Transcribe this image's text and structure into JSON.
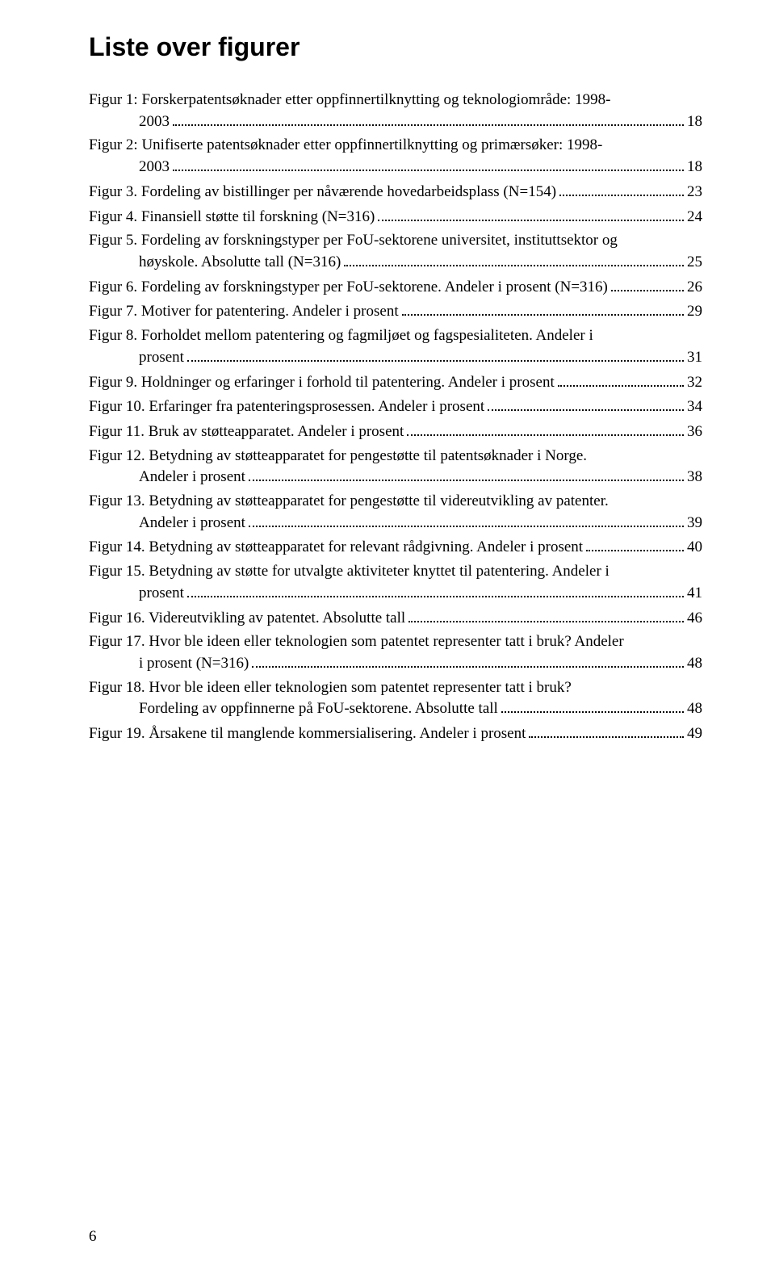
{
  "title": "Liste over figurer",
  "pageNumber": "6",
  "entries": [
    {
      "lines": [
        "Figur 1: Forskerpatentsøknader etter oppfinnertilknytting og teknologiområde: 1998-",
        "2003"
      ],
      "page": "18"
    },
    {
      "lines": [
        "Figur 2: Unifiserte patentsøknader etter oppfinnertilknytting og primærsøker: 1998-",
        "2003"
      ],
      "page": "18"
    },
    {
      "lines": [
        "Figur 3. Fordeling av bistillinger per nåværende hovedarbeidsplass (N=154)"
      ],
      "page": "23"
    },
    {
      "lines": [
        "Figur 4. Finansiell støtte til forskning (N=316)"
      ],
      "page": "24"
    },
    {
      "lines": [
        "Figur 5. Fordeling av forskningstyper per FoU-sektorene universitet, instituttsektor og",
        "høyskole. Absolutte tall (N=316)"
      ],
      "page": "25"
    },
    {
      "lines": [
        "Figur 6. Fordeling av forskningstyper per FoU-sektorene. Andeler i prosent (N=316)"
      ],
      "page": "26"
    },
    {
      "lines": [
        "Figur 7. Motiver for patentering. Andeler i prosent"
      ],
      "page": "29"
    },
    {
      "lines": [
        "Figur 8. Forholdet mellom patentering og fagmiljøet og fagspesialiteten. Andeler i",
        "prosent"
      ],
      "page": "31"
    },
    {
      "lines": [
        "Figur 9. Holdninger og erfaringer i forhold til patentering. Andeler i prosent"
      ],
      "page": "32"
    },
    {
      "lines": [
        "Figur 10. Erfaringer fra patenteringsprosessen. Andeler i prosent"
      ],
      "page": "34"
    },
    {
      "lines": [
        "Figur 11. Bruk av støtteapparatet. Andeler i prosent"
      ],
      "page": "36"
    },
    {
      "lines": [
        "Figur 12. Betydning av støtteapparatet for pengestøtte til patentsøknader i Norge.",
        "Andeler i prosent"
      ],
      "page": "38"
    },
    {
      "lines": [
        "Figur 13. Betydning av støtteapparatet for pengestøtte til videreutvikling av patenter.",
        "Andeler i prosent"
      ],
      "page": "39"
    },
    {
      "lines": [
        "Figur 14. Betydning av støtteapparatet for relevant rådgivning. Andeler i prosent"
      ],
      "page": "40"
    },
    {
      "lines": [
        "Figur 15. Betydning av støtte for utvalgte aktiviteter knyttet til patentering. Andeler i",
        "prosent"
      ],
      "page": "41"
    },
    {
      "lines": [
        "Figur 16. Videreutvikling av patentet. Absolutte tall"
      ],
      "page": "46"
    },
    {
      "lines": [
        "Figur 17. Hvor ble ideen eller teknologien som patentet representer tatt i bruk? Andeler",
        "i prosent (N=316)"
      ],
      "page": "48"
    },
    {
      "lines": [
        "Figur 18. Hvor ble ideen eller teknologien som patentet representer tatt i bruk?",
        "Fordeling av oppfinnerne på FoU-sektorene. Absolutte tall"
      ],
      "page": "48"
    },
    {
      "lines": [
        "Figur 19. Årsakene til manglende kommersialisering. Andeler i prosent"
      ],
      "page": "49"
    }
  ]
}
